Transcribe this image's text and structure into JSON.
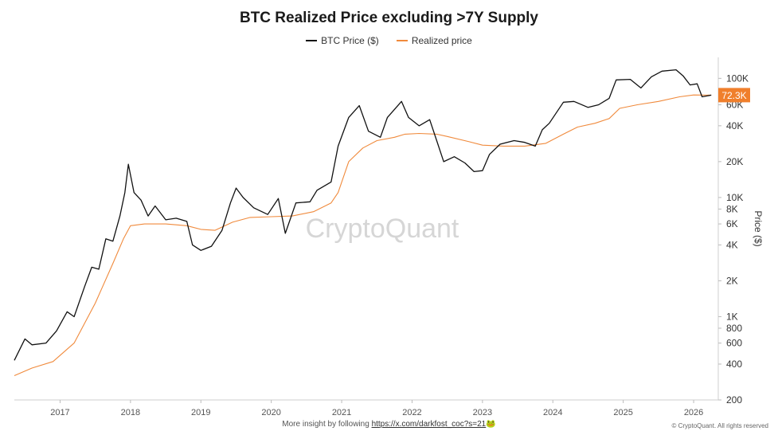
{
  "chart_data": {
    "type": "line",
    "title": "BTC Realized Price excluding >7Y Supply",
    "ylabel": "Price ($)",
    "yscale": "log",
    "ylim": [
      200,
      150000
    ],
    "xlim": [
      2016.35,
      2026.35
    ],
    "x_ticks": [
      "2017",
      "2018",
      "2019",
      "2020",
      "2021",
      "2022",
      "2023",
      "2024",
      "2025",
      "2026"
    ],
    "y_ticks": [
      {
        "label": "100K",
        "value": 100000
      },
      {
        "label": "60K",
        "value": 60000
      },
      {
        "label": "40K",
        "value": 40000
      },
      {
        "label": "20K",
        "value": 20000
      },
      {
        "label": "10K",
        "value": 10000
      },
      {
        "label": "8K",
        "value": 8000
      },
      {
        "label": "6K",
        "value": 6000
      },
      {
        "label": "4K",
        "value": 4000
      },
      {
        "label": "2K",
        "value": 2000
      },
      {
        "label": "1K",
        "value": 1000
      },
      {
        "label": "800",
        "value": 800
      },
      {
        "label": "600",
        "value": 600
      },
      {
        "label": "400",
        "value": 400
      },
      {
        "label": "200",
        "value": 200
      }
    ],
    "legend_position": "top-center",
    "watermark": "CryptoQuant",
    "current_value_label": "72.3K",
    "current_value": 72300,
    "series": [
      {
        "name": "BTC Price ($)",
        "color": "#111111",
        "points": [
          [
            2016.35,
            430
          ],
          [
            2016.5,
            650
          ],
          [
            2016.6,
            580
          ],
          [
            2016.8,
            600
          ],
          [
            2016.95,
            760
          ],
          [
            2017.1,
            1100
          ],
          [
            2017.2,
            1000
          ],
          [
            2017.35,
            1800
          ],
          [
            2017.45,
            2600
          ],
          [
            2017.55,
            2500
          ],
          [
            2017.65,
            4500
          ],
          [
            2017.75,
            4300
          ],
          [
            2017.85,
            7000
          ],
          [
            2017.92,
            11000
          ],
          [
            2017.97,
            19000
          ],
          [
            2018.05,
            11000
          ],
          [
            2018.15,
            9500
          ],
          [
            2018.25,
            7000
          ],
          [
            2018.35,
            8500
          ],
          [
            2018.5,
            6500
          ],
          [
            2018.65,
            6700
          ],
          [
            2018.8,
            6300
          ],
          [
            2018.88,
            4000
          ],
          [
            2019.0,
            3600
          ],
          [
            2019.15,
            3900
          ],
          [
            2019.3,
            5300
          ],
          [
            2019.42,
            9000
          ],
          [
            2019.5,
            12000
          ],
          [
            2019.6,
            10000
          ],
          [
            2019.75,
            8200
          ],
          [
            2019.95,
            7200
          ],
          [
            2020.1,
            9800
          ],
          [
            2020.2,
            5000
          ],
          [
            2020.35,
            9000
          ],
          [
            2020.55,
            9200
          ],
          [
            2020.65,
            11500
          ],
          [
            2020.85,
            13500
          ],
          [
            2020.95,
            27000
          ],
          [
            2021.1,
            47000
          ],
          [
            2021.25,
            59000
          ],
          [
            2021.38,
            36000
          ],
          [
            2021.55,
            32000
          ],
          [
            2021.65,
            47000
          ],
          [
            2021.85,
            64000
          ],
          [
            2021.95,
            47000
          ],
          [
            2022.1,
            40000
          ],
          [
            2022.25,
            45000
          ],
          [
            2022.35,
            30000
          ],
          [
            2022.45,
            20000
          ],
          [
            2022.6,
            22000
          ],
          [
            2022.75,
            19500
          ],
          [
            2022.88,
            16500
          ],
          [
            2023.0,
            16800
          ],
          [
            2023.1,
            23000
          ],
          [
            2023.25,
            28000
          ],
          [
            2023.45,
            30000
          ],
          [
            2023.6,
            29000
          ],
          [
            2023.75,
            27000
          ],
          [
            2023.85,
            37000
          ],
          [
            2023.95,
            42000
          ],
          [
            2024.15,
            63000
          ],
          [
            2024.3,
            64000
          ],
          [
            2024.5,
            57000
          ],
          [
            2024.65,
            60000
          ],
          [
            2024.8,
            68000
          ],
          [
            2024.9,
            97000
          ],
          [
            2025.1,
            98000
          ],
          [
            2025.25,
            83000
          ],
          [
            2025.4,
            103000
          ],
          [
            2025.55,
            115000
          ],
          [
            2025.75,
            118000
          ],
          [
            2025.85,
            105000
          ],
          [
            2025.95,
            88000
          ],
          [
            2026.05,
            90000
          ],
          [
            2026.12,
            70000
          ],
          [
            2026.25,
            72300
          ]
        ]
      },
      {
        "name": "Realized price",
        "color": "#f08a3c",
        "points": [
          [
            2016.35,
            320
          ],
          [
            2016.6,
            370
          ],
          [
            2016.9,
            420
          ],
          [
            2017.2,
            600
          ],
          [
            2017.5,
            1300
          ],
          [
            2017.75,
            2800
          ],
          [
            2017.9,
            4500
          ],
          [
            2018.0,
            5800
          ],
          [
            2018.2,
            6000
          ],
          [
            2018.5,
            6000
          ],
          [
            2018.8,
            5800
          ],
          [
            2019.0,
            5400
          ],
          [
            2019.2,
            5300
          ],
          [
            2019.45,
            6200
          ],
          [
            2019.7,
            6800
          ],
          [
            2020.0,
            6900
          ],
          [
            2020.3,
            7000
          ],
          [
            2020.6,
            7600
          ],
          [
            2020.85,
            9000
          ],
          [
            2020.95,
            11000
          ],
          [
            2021.1,
            20000
          ],
          [
            2021.3,
            26000
          ],
          [
            2021.5,
            30000
          ],
          [
            2021.75,
            32000
          ],
          [
            2021.9,
            34000
          ],
          [
            2022.1,
            34500
          ],
          [
            2022.35,
            34000
          ],
          [
            2022.5,
            32500
          ],
          [
            2022.8,
            29500
          ],
          [
            2023.0,
            27500
          ],
          [
            2023.3,
            27000
          ],
          [
            2023.6,
            27000
          ],
          [
            2023.9,
            28500
          ],
          [
            2024.15,
            34000
          ],
          [
            2024.35,
            39000
          ],
          [
            2024.6,
            42000
          ],
          [
            2024.8,
            46000
          ],
          [
            2024.95,
            56000
          ],
          [
            2025.2,
            60000
          ],
          [
            2025.5,
            64000
          ],
          [
            2025.8,
            70000
          ],
          [
            2026.0,
            72500
          ],
          [
            2026.25,
            72300
          ]
        ]
      }
    ]
  },
  "footer": {
    "text": "More insight by following",
    "link": "https://x.com/darkfost_coc?s=21",
    "emoji": "🐸",
    "copyright": "© CryptoQuant. All rights reserved"
  }
}
